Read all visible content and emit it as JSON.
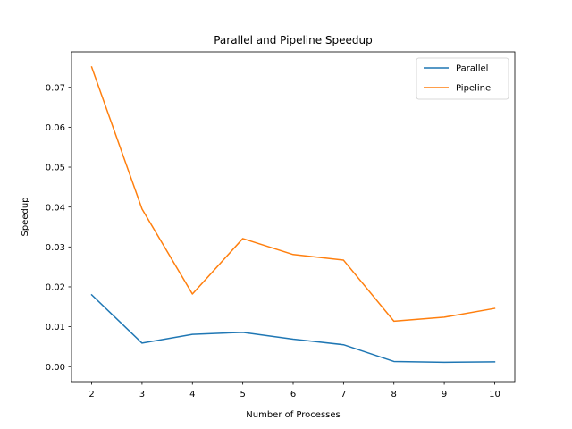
{
  "chart_data": {
    "type": "line",
    "title": "Parallel and Pipeline Speedup",
    "xlabel": "Number of Processes",
    "ylabel": "Speedup",
    "x": [
      2,
      3,
      4,
      5,
      6,
      7,
      8,
      9,
      10
    ],
    "series": [
      {
        "name": "Parallel",
        "color": "#1f77b4",
        "values": [
          0.018,
          0.0059,
          0.0081,
          0.0086,
          0.0069,
          0.0055,
          0.0013,
          0.0011,
          0.0012
        ]
      },
      {
        "name": "Pipeline",
        "color": "#ff7f0e",
        "values": [
          0.0751,
          0.0395,
          0.0182,
          0.0321,
          0.0281,
          0.0267,
          0.0114,
          0.0124,
          0.0146
        ]
      }
    ],
    "xlim": [
      1.6,
      10.4
    ],
    "ylim": [
      -0.00375,
      0.0789
    ],
    "xticks": [
      2,
      3,
      4,
      5,
      6,
      7,
      8,
      9,
      10
    ],
    "xtick_labels": [
      "2",
      "3",
      "4",
      "5",
      "6",
      "7",
      "8",
      "9",
      "10"
    ],
    "yticks": [
      0.0,
      0.01,
      0.02,
      0.03,
      0.04,
      0.05,
      0.06,
      0.07
    ],
    "ytick_labels": [
      "0.00",
      "0.01",
      "0.02",
      "0.03",
      "0.04",
      "0.05",
      "0.06",
      "0.07"
    ],
    "grid": false,
    "legend_position": "top-right"
  }
}
